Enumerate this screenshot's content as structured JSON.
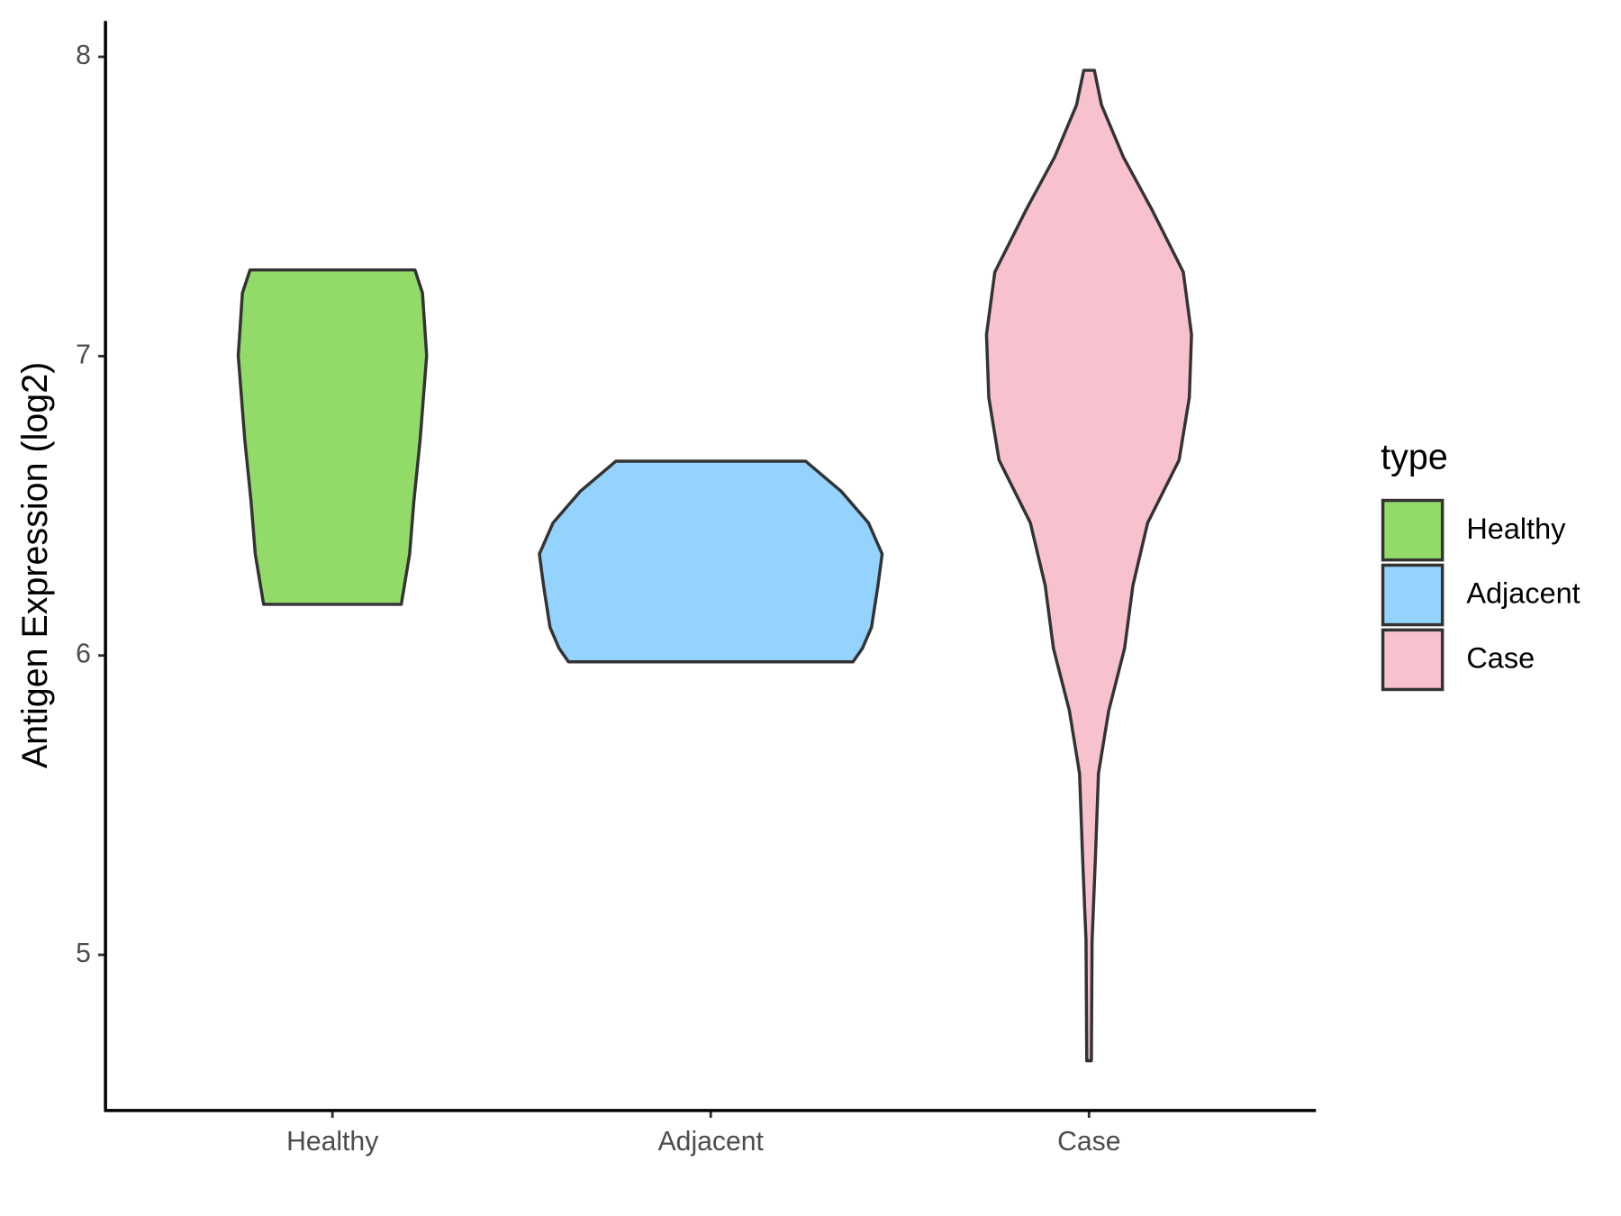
{
  "chart_data": {
    "type": "violin",
    "y_label": "Antigen Expression (log2)",
    "categories": [
      "Healthy",
      "Adjacent",
      "Case"
    ],
    "legend_title": "type",
    "legend_position": "right",
    "ylim": [
      4.48,
      8.12
    ],
    "yticks": [
      5,
      6,
      7,
      8
    ],
    "series": [
      {
        "name": "Healthy",
        "color": "#93db69",
        "y": [
          7.288,
          7.211,
          7.002,
          6.723,
          6.513,
          6.339,
          6.171
        ],
        "width": [
          0.218,
          0.238,
          0.249,
          0.232,
          0.215,
          0.204,
          0.182
        ]
      },
      {
        "name": "Adjacent",
        "color": "#93d3fd",
        "y": [
          6.649,
          6.548,
          6.443,
          6.339,
          6.234,
          6.094,
          6.024,
          5.979
        ],
        "width": [
          0.251,
          0.345,
          0.417,
          0.453,
          0.442,
          0.425,
          0.401,
          0.376
        ]
      },
      {
        "name": "Case",
        "color": "#f7c1cd",
        "y": [
          7.955,
          7.839,
          7.665,
          7.49,
          7.281,
          7.072,
          6.862,
          6.653,
          6.443,
          6.234,
          6.024,
          5.815,
          5.606,
          5.326,
          5.047,
          4.646
        ],
        "width": [
          0.014,
          0.033,
          0.091,
          0.166,
          0.249,
          0.271,
          0.265,
          0.238,
          0.155,
          0.116,
          0.094,
          0.052,
          0.025,
          0.017,
          0.008,
          0.006
        ]
      }
    ]
  }
}
